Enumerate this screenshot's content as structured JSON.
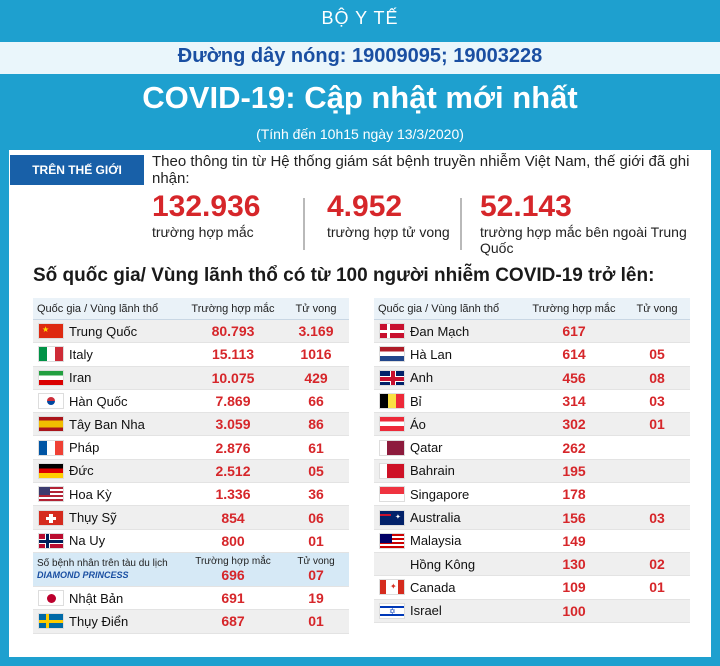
{
  "header": {
    "ministry": "BỘ Y TẾ",
    "hotline": "Đường dây nóng: 19009095; 19003228",
    "title": "COVID-19: Cập nhật mới nhất",
    "as_of": "(Tính đến 10h15 ngày 13/3/2020)"
  },
  "world": {
    "tab_label": "TRÊN THẾ GIỚI",
    "intro": "Theo thông tin từ Hệ thống giám sát bệnh truyền nhiễm Việt Nam, thế giới đã ghi nhận:",
    "stats": [
      {
        "value": "132.936",
        "label": "trường hợp mắc"
      },
      {
        "value": "4.952",
        "label": "trường hợp tử vong"
      },
      {
        "value": "52.143",
        "label": "trường hợp  mắc bên ngoài Trung Quốc"
      }
    ]
  },
  "section_title": "Số quốc gia/ Vùng lãnh thổ có từ 100 người  nhiễm COVID-19 trở lên:",
  "tables": {
    "headers": {
      "country": "Quốc gia / Vùng lãnh thổ",
      "cases": "Trường hợp mắc",
      "deaths": "Tử vong"
    },
    "left": [
      {
        "flag": "china-flag",
        "name": "Trung Quốc",
        "cases": "80.793",
        "deaths": "3.169"
      },
      {
        "flag": "italy-flag",
        "name": "Italy",
        "cases": "15.113",
        "deaths": "1016"
      },
      {
        "flag": "iran-flag",
        "name": "Iran",
        "cases": "10.075",
        "deaths": "429"
      },
      {
        "flag": "korea-flag",
        "name": "Hàn Quốc",
        "cases": "7.869",
        "deaths": "66"
      },
      {
        "flag": "spain-flag",
        "name": "Tây Ban Nha",
        "cases": "3.059",
        "deaths": "86"
      },
      {
        "flag": "france-flag",
        "name": "Pháp",
        "cases": "2.876",
        "deaths": "61"
      },
      {
        "flag": "germany-flag",
        "name": "Đức",
        "cases": "2.512",
        "deaths": "05"
      },
      {
        "flag": "usa-flag",
        "name": "Hoa Kỳ",
        "cases": "1.336",
        "deaths": "36"
      },
      {
        "flag": "switzerland-flag",
        "name": "Thụy Sỹ",
        "cases": "854",
        "deaths": "06"
      },
      {
        "flag": "norway-flag",
        "name": "Na Uy",
        "cases": "800",
        "deaths": "01"
      },
      {
        "flag": "cruise-ship-image",
        "name": "Số bệnh nhân trên tàu du lịch",
        "subname": "DIAMOND PRINCESS",
        "cases": "696",
        "deaths": "07",
        "header_repeat": "Trường hợp mắc",
        "deaths_header_repeat": "Tử vong"
      },
      {
        "flag": "japan-flag",
        "name": "Nhật Bản",
        "cases": "691",
        "deaths": "19"
      },
      {
        "flag": "sweden-flag",
        "name": "Thụy Điển",
        "cases": "687",
        "deaths": "01"
      }
    ],
    "right": [
      {
        "flag": "denmark-flag",
        "name": "Đan Mạch",
        "cases": "617",
        "deaths": ""
      },
      {
        "flag": "netherlands-flag",
        "name": "Hà Lan",
        "cases": "614",
        "deaths": "05"
      },
      {
        "flag": "uk-flag",
        "name": "Anh",
        "cases": "456",
        "deaths": "08"
      },
      {
        "flag": "belgium-flag",
        "name": "Bỉ",
        "cases": "314",
        "deaths": "03"
      },
      {
        "flag": "austria-flag",
        "name": "Áo",
        "cases": "302",
        "deaths": "01"
      },
      {
        "flag": "qatar-flag",
        "name": "Qatar",
        "cases": "262",
        "deaths": ""
      },
      {
        "flag": "bahrain-flag",
        "name": "Bahrain",
        "cases": "195",
        "deaths": ""
      },
      {
        "flag": "singapore-flag",
        "name": "Singapore",
        "cases": "178",
        "deaths": ""
      },
      {
        "flag": "australia-flag",
        "name": "Australia",
        "cases": "156",
        "deaths": "03"
      },
      {
        "flag": "malaysia-flag",
        "name": "Malaysia",
        "cases": "149",
        "deaths": ""
      },
      {
        "flag": "",
        "name": "Hồng Kông",
        "cases": "130",
        "deaths": "02"
      },
      {
        "flag": "canada-flag",
        "name": "Canada",
        "cases": "109",
        "deaths": "01"
      },
      {
        "flag": "israel-flag",
        "name": "Israel",
        "cases": "100",
        "deaths": ""
      }
    ]
  },
  "colors": {
    "background": "#1ea0cf",
    "accent_red": "#d6262a",
    "hotline_blue": "#1a4fa2",
    "tab_blue": "#1860a8"
  }
}
